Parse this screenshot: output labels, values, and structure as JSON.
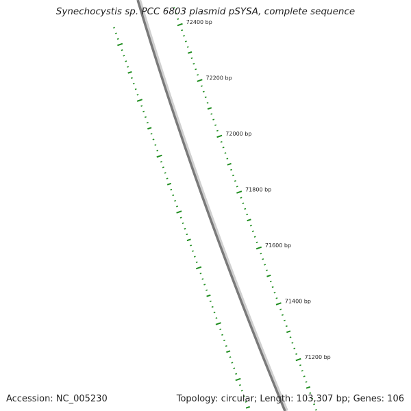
{
  "title": "Synechocystis sp. PCC 6803 plasmid pSYSA, complete sequence",
  "accession": "Accession: NC_005230",
  "summary": "Topology: circular; Length: 103,307 bp; Genes: 106",
  "colors": {
    "backbone": "#8a8a8a",
    "ticks": "#1e8c1e",
    "text": "#222222"
  },
  "tick_labels": [
    {
      "bp": 72400,
      "label": "72400 bp"
    },
    {
      "bp": 72200,
      "label": "72200 bp"
    },
    {
      "bp": 72000,
      "label": "72000 bp"
    },
    {
      "bp": 71800,
      "label": "71800 bp"
    },
    {
      "bp": 71600,
      "label": "71600 bp"
    },
    {
      "bp": 71400,
      "label": "71400 bp"
    },
    {
      "bp": 71200,
      "label": "71200 bp"
    }
  ]
}
